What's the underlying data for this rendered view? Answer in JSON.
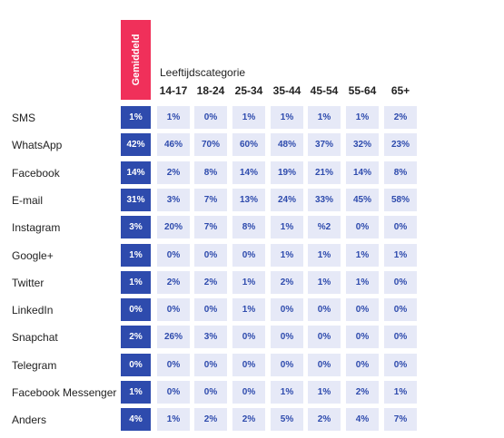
{
  "chart_data": {
    "type": "table",
    "average_header": "Gemiddeld",
    "age_group_title": "Leeftijdscategorie",
    "age_groups": [
      "14-17",
      "18-24",
      "25-34",
      "35-44",
      "45-54",
      "55-64",
      "65+"
    ],
    "rows": [
      {
        "label": "SMS",
        "average": "1%",
        "values": [
          "1%",
          "0%",
          "1%",
          "1%",
          "1%",
          "1%",
          "2%"
        ]
      },
      {
        "label": "WhatsApp",
        "average": "42%",
        "values": [
          "46%",
          "70%",
          "60%",
          "48%",
          "37%",
          "32%",
          "23%"
        ]
      },
      {
        "label": "Facebook",
        "average": "14%",
        "values": [
          "2%",
          "8%",
          "14%",
          "19%",
          "21%",
          "14%",
          "8%"
        ]
      },
      {
        "label": "E-mail",
        "average": "31%",
        "values": [
          "3%",
          "7%",
          "13%",
          "24%",
          "33%",
          "45%",
          "58%"
        ]
      },
      {
        "label": "Instagram",
        "average": "3%",
        "values": [
          "20%",
          "7%",
          "8%",
          "1%",
          "%2",
          "0%",
          "0%"
        ]
      },
      {
        "label": "Google+",
        "average": "1%",
        "values": [
          "0%",
          "0%",
          "0%",
          "1%",
          "1%",
          "1%",
          "1%"
        ]
      },
      {
        "label": "Twitter",
        "average": "1%",
        "values": [
          "2%",
          "2%",
          "1%",
          "2%",
          "1%",
          "1%",
          "0%"
        ]
      },
      {
        "label": "LinkedIn",
        "average": "0%",
        "values": [
          "0%",
          "0%",
          "1%",
          "0%",
          "0%",
          "0%",
          "0%"
        ]
      },
      {
        "label": "Snapchat",
        "average": "2%",
        "values": [
          "26%",
          "3%",
          "0%",
          "0%",
          "0%",
          "0%",
          "0%"
        ]
      },
      {
        "label": "Telegram",
        "average": "0%",
        "values": [
          "0%",
          "0%",
          "0%",
          "0%",
          "0%",
          "0%",
          "0%"
        ]
      },
      {
        "label": "Facebook Messenger",
        "average": "1%",
        "values": [
          "0%",
          "0%",
          "0%",
          "1%",
          "1%",
          "2%",
          "1%"
        ]
      },
      {
        "label": "Anders",
        "average": "4%",
        "values": [
          "1%",
          "2%",
          "2%",
          "5%",
          "2%",
          "4%",
          "7%"
        ]
      }
    ],
    "colors": {
      "average_fill": "#2e4bad",
      "average_header": "#f0305a",
      "age_fill": "#e6e9f7",
      "age_text": "#2e4bad"
    }
  }
}
